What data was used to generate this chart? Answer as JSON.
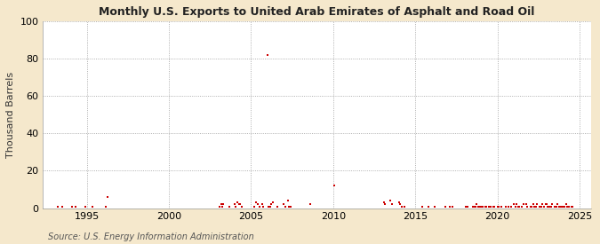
{
  "title": "Monthly U.S. Exports to United Arab Emirates of Asphalt and Road Oil",
  "ylabel": "Thousand Barrels",
  "source": "Source: U.S. Energy Information Administration",
  "background_color": "#f5e8cc",
  "plot_bg_color": "#ffffff",
  "marker_color": "#cc0000",
  "ylim": [
    0,
    100
  ],
  "yticks": [
    0,
    20,
    40,
    60,
    80,
    100
  ],
  "xlim_start": 1992.3,
  "xlim_end": 2025.7,
  "xticks": [
    1995,
    2000,
    2005,
    2010,
    2015,
    2020,
    2025
  ],
  "data_points": [
    [
      1993.25,
      1
    ],
    [
      1993.5,
      1
    ],
    [
      1994.08,
      1
    ],
    [
      1994.33,
      1
    ],
    [
      1994.92,
      1
    ],
    [
      1995.33,
      1
    ],
    [
      1996.17,
      1
    ],
    [
      1996.25,
      6
    ],
    [
      2003.08,
      1
    ],
    [
      2003.17,
      2
    ],
    [
      2003.25,
      1
    ],
    [
      2003.33,
      2
    ],
    [
      2003.67,
      1
    ],
    [
      2004.0,
      2
    ],
    [
      2004.08,
      1
    ],
    [
      2004.17,
      3
    ],
    [
      2004.25,
      2
    ],
    [
      2004.33,
      2
    ],
    [
      2004.42,
      1
    ],
    [
      2005.17,
      1
    ],
    [
      2005.33,
      3
    ],
    [
      2005.42,
      2
    ],
    [
      2005.5,
      1
    ],
    [
      2005.67,
      2
    ],
    [
      2005.75,
      1
    ],
    [
      2006.0,
      82
    ],
    [
      2006.08,
      1
    ],
    [
      2006.17,
      1
    ],
    [
      2006.25,
      2
    ],
    [
      2006.33,
      3
    ],
    [
      2006.58,
      1
    ],
    [
      2007.0,
      2
    ],
    [
      2007.08,
      1
    ],
    [
      2007.25,
      4
    ],
    [
      2007.33,
      1
    ],
    [
      2007.42,
      1
    ],
    [
      2008.58,
      2
    ],
    [
      2010.08,
      12
    ],
    [
      2013.08,
      3
    ],
    [
      2013.17,
      2
    ],
    [
      2013.5,
      4
    ],
    [
      2013.58,
      2
    ],
    [
      2014.0,
      3
    ],
    [
      2014.08,
      2
    ],
    [
      2014.17,
      1
    ],
    [
      2014.33,
      1
    ],
    [
      2015.42,
      1
    ],
    [
      2015.83,
      1
    ],
    [
      2016.17,
      1
    ],
    [
      2016.83,
      1
    ],
    [
      2017.08,
      1
    ],
    [
      2017.25,
      1
    ],
    [
      2018.08,
      1
    ],
    [
      2018.17,
      1
    ],
    [
      2018.5,
      1
    ],
    [
      2018.58,
      1
    ],
    [
      2018.67,
      1
    ],
    [
      2018.75,
      2
    ],
    [
      2018.83,
      1
    ],
    [
      2018.92,
      1
    ],
    [
      2019.0,
      1
    ],
    [
      2019.08,
      1
    ],
    [
      2019.25,
      1
    ],
    [
      2019.33,
      1
    ],
    [
      2019.5,
      1
    ],
    [
      2019.58,
      1
    ],
    [
      2019.75,
      1
    ],
    [
      2019.83,
      1
    ],
    [
      2020.0,
      1
    ],
    [
      2020.08,
      1
    ],
    [
      2020.25,
      1
    ],
    [
      2020.5,
      1
    ],
    [
      2020.67,
      1
    ],
    [
      2020.83,
      1
    ],
    [
      2021.0,
      2
    ],
    [
      2021.08,
      1
    ],
    [
      2021.17,
      2
    ],
    [
      2021.25,
      1
    ],
    [
      2021.33,
      1
    ],
    [
      2021.5,
      1
    ],
    [
      2021.58,
      2
    ],
    [
      2021.75,
      2
    ],
    [
      2021.83,
      1
    ],
    [
      2022.0,
      1
    ],
    [
      2022.08,
      1
    ],
    [
      2022.17,
      2
    ],
    [
      2022.25,
      1
    ],
    [
      2022.33,
      1
    ],
    [
      2022.42,
      2
    ],
    [
      2022.58,
      1
    ],
    [
      2022.67,
      1
    ],
    [
      2022.75,
      2
    ],
    [
      2022.83,
      1
    ],
    [
      2022.92,
      2
    ],
    [
      2023.0,
      2
    ],
    [
      2023.08,
      1
    ],
    [
      2023.17,
      1
    ],
    [
      2023.25,
      1
    ],
    [
      2023.33,
      2
    ],
    [
      2023.5,
      1
    ],
    [
      2023.58,
      1
    ],
    [
      2023.67,
      2
    ],
    [
      2023.75,
      1
    ],
    [
      2023.83,
      1
    ],
    [
      2023.92,
      1
    ],
    [
      2024.0,
      1
    ],
    [
      2024.08,
      1
    ],
    [
      2024.17,
      2
    ],
    [
      2024.25,
      1
    ],
    [
      2024.33,
      1
    ],
    [
      2024.5,
      1
    ],
    [
      2024.58,
      1
    ]
  ]
}
